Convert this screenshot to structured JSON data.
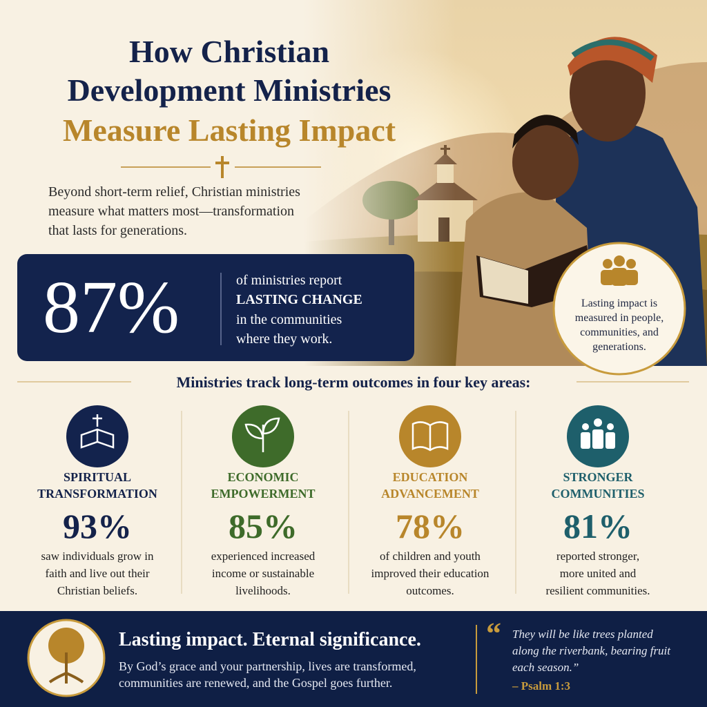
{
  "header": {
    "title_lines": [
      "How Christian",
      "Development Ministries",
      "Measure Lasting Impact"
    ],
    "intro_lines": [
      "Beyond short-term relief, Christian ministries",
      "measure what matters most—transformation",
      "that lasts for generations."
    ]
  },
  "highlight": {
    "value": "87%",
    "text_lines": [
      "of ministries report",
      "LASTING CHANGE",
      "in the communities",
      "where they work."
    ]
  },
  "badge": {
    "lines": [
      "Lasting impact is",
      "measured in people,",
      "communities, and",
      "generations."
    ]
  },
  "areas": {
    "heading": "Ministries track long-term outcomes in four key areas:",
    "items": [
      {
        "label_lines": [
          "SPIRITUAL",
          "TRANSFORMATION"
        ],
        "value": "93%",
        "text_lines": [
          "saw individuals grow in",
          "faith and live out their",
          "Christian beliefs."
        ]
      },
      {
        "label_lines": [
          "ECONOMIC",
          "EMPOWERMENT"
        ],
        "value": "85%",
        "text_lines": [
          "experienced increased",
          "income or sustainable",
          "livelihoods."
        ]
      },
      {
        "label_lines": [
          "EDUCATION",
          "ADVANCEMENT"
        ],
        "value": "78%",
        "text_lines": [
          "of children and youth",
          "improved their education",
          "outcomes."
        ]
      },
      {
        "label_lines": [
          "STRONGER",
          "COMMUNITIES"
        ],
        "value": "81%",
        "text_lines": [
          "reported stronger,",
          "more united and",
          "resilient communities."
        ]
      }
    ]
  },
  "footer": {
    "heading": "Lasting impact. Eternal significance.",
    "body_lines": [
      "By God’s grace and your partnership, lives are transformed,",
      "communities are renewed, and the Gospel goes further."
    ],
    "quote_lines": [
      "They will be like trees planted",
      "along the riverbank, bearing fruit",
      "each season.”"
    ],
    "citation": "– Psalm 1:3"
  }
}
